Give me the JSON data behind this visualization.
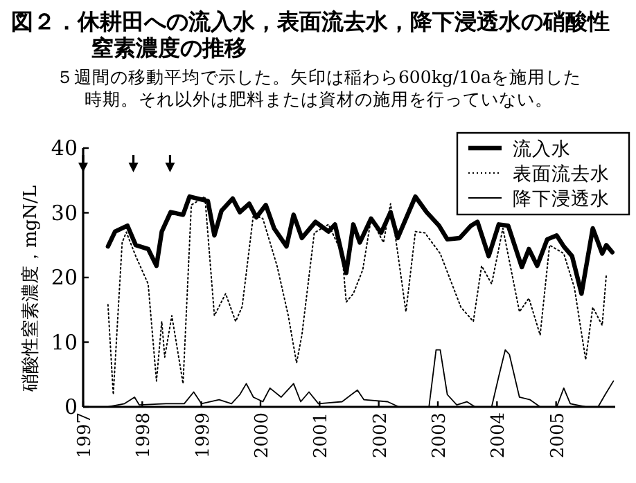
{
  "chart_data": {
    "type": "line",
    "title": "図２．休耕田への流入水，表面流去水，降下浸透水の硝酸性窒素濃度の推移",
    "subtitle": "５週間の移動平均で示した。矢印は稲わら600kg/10aを施用した時期。それ以外は肥料または資材の施用を行っていない。",
    "ylabel": "硝酸性窒素濃度，mgN/L",
    "xlim": [
      1997,
      2006
    ],
    "xticks": [
      1997,
      1998,
      1999,
      2000,
      2001,
      2002,
      2003,
      2004,
      2005
    ],
    "ylim": [
      0,
      40
    ],
    "yticks": [
      0,
      10,
      20,
      30,
      40
    ],
    "legend": "top right",
    "series": [
      {
        "type": "scatter",
        "color": "#000000",
        "marker": "triangle",
        "x": [
          1997.0,
          1997.85,
          1998.47
        ],
        "values": [
          37,
          37,
          37
        ]
      },
      {
        "name": "流入水",
        "color": "#000000",
        "line_style": "solid",
        "x": [
          1997.42,
          1997.54,
          1997.75,
          1997.89,
          1998.1,
          1998.24,
          1998.33,
          1998.48,
          1998.69,
          1998.8,
          1999.11,
          1999.22,
          1999.34,
          1999.53,
          1999.65,
          1999.81,
          1999.93,
          2000.09,
          2000.23,
          2000.44,
          2000.56,
          2000.7,
          2000.93,
          2001.15,
          2001.26,
          2001.45,
          2001.57,
          2001.68,
          2001.87,
          2002.04,
          2002.2,
          2002.32,
          2002.46,
          2002.62,
          2002.81,
          2003.02,
          2003.16,
          2003.37,
          2003.56,
          2003.67,
          2003.86,
          2004.03,
          2004.19,
          2004.42,
          2004.54,
          2004.68,
          2004.85,
          2005.01,
          2005.13,
          2005.27,
          2005.43,
          2005.62,
          2005.78,
          2005.85,
          2005.95
        ],
        "values": [
          24.8,
          27.1,
          28,
          25,
          24.4,
          21.8,
          27.1,
          30.1,
          29.7,
          32.5,
          31.8,
          26.5,
          30.3,
          32.2,
          30.1,
          31.4,
          29.3,
          31.2,
          27.6,
          24.8,
          29.7,
          26.1,
          28.6,
          27.1,
          28.2,
          20.7,
          28.2,
          25.4,
          29.1,
          26.9,
          30.1,
          26.1,
          29.1,
          32.5,
          30.1,
          28,
          25.9,
          26.1,
          28,
          28.6,
          23.3,
          28.2,
          28,
          21.6,
          24.4,
          21.8,
          25.9,
          26.5,
          24.8,
          23.3,
          17.5,
          27.6,
          23.7,
          25,
          23.9
        ]
      },
      {
        "name": "表面流去水",
        "color": "#000000",
        "line_style": "dotted",
        "x": [
          1997.42,
          1997.51,
          1997.66,
          1997.73,
          1997.89,
          1998.1,
          1998.24,
          1998.33,
          1998.38,
          1998.5,
          1998.69,
          1998.83,
          1999.06,
          1999.22,
          1999.41,
          1999.58,
          1999.69,
          1999.88,
          2000.04,
          2000.28,
          2000.47,
          2000.61,
          2000.7,
          2000.91,
          2001.15,
          2001.38,
          2001.45,
          2001.57,
          2001.73,
          2001.87,
          2002.08,
          2002.2,
          2002.32,
          2002.46,
          2002.62,
          2002.78,
          2003.04,
          2003.39,
          2003.6,
          2003.74,
          2003.91,
          2004.1,
          2004.38,
          2004.54,
          2004.73,
          2004.89,
          2005.13,
          2005.31,
          2005.5,
          2005.62,
          2005.78,
          2005.85
        ],
        "values": [
          15.8,
          1.9,
          25.4,
          27,
          23.3,
          19,
          4,
          13.2,
          7.7,
          14.1,
          3.6,
          31.2,
          32.5,
          14.1,
          17.5,
          13.2,
          15.5,
          29.7,
          29.1,
          21.8,
          14.1,
          6.8,
          11.1,
          26.9,
          28.2,
          23.7,
          16.2,
          17.5,
          21.2,
          29.1,
          25.4,
          31.4,
          23.9,
          14.7,
          27.1,
          26.9,
          23.7,
          15.4,
          13.2,
          21.8,
          19,
          27.6,
          14.7,
          16.8,
          11.1,
          25,
          23.7,
          18.4,
          7.3,
          15.4,
          12.6,
          20.5
        ]
      },
      {
        "name": "降下浸透水",
        "color": "#000000",
        "line_style": "solid",
        "x": [
          1997.42,
          1997.7,
          1997.87,
          1997.95,
          1998.4,
          1998.71,
          1998.87,
          1999.0,
          1999.3,
          1999.51,
          1999.65,
          1999.76,
          1999.88,
          2000.04,
          2000.16,
          2000.35,
          2000.56,
          2000.68,
          2000.82,
          2000.98,
          2001.38,
          2001.64,
          2001.75,
          2002.15,
          2002.34,
          2002.85,
          2002.97,
          2003.04,
          2003.16,
          2003.32,
          2003.49,
          2003.63,
          2003.91,
          2004.03,
          2004.14,
          2004.21,
          2004.38,
          2004.56,
          2004.73,
          2005.01,
          2005.13,
          2005.24,
          2005.5,
          2005.71,
          2005.83,
          2005.97
        ],
        "values": [
          0,
          0.5,
          1.5,
          0.3,
          0.5,
          0.5,
          2.3,
          0.5,
          1.1,
          0.5,
          1.9,
          3.6,
          1.5,
          0.8,
          2.9,
          1.5,
          3.6,
          0.8,
          2.3,
          0.5,
          0.8,
          2.6,
          1.1,
          0.8,
          0,
          0,
          8.8,
          8.8,
          1.9,
          0.3,
          0.8,
          0,
          0,
          4.7,
          8.8,
          8.1,
          1.5,
          1.1,
          0,
          0,
          2.9,
          0.5,
          0,
          0,
          1.9,
          4
        ]
      }
    ]
  }
}
